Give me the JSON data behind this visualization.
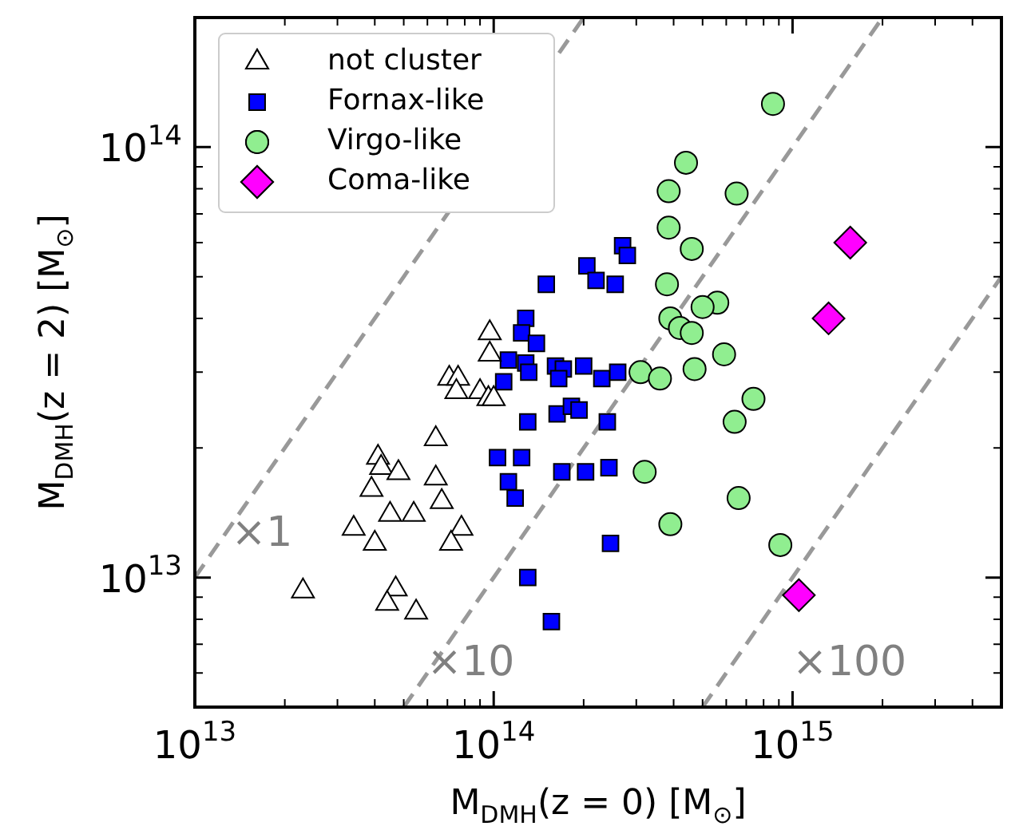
{
  "chart_data": {
    "type": "scatter",
    "xlabel": "M$_{DMH}$(z = 0) [M$_{⊙}$]",
    "ylabel": "M$_{DMH}$(z = 2) [M$_{⊙}$]",
    "log": "xy",
    "grid": false,
    "legend": "top left",
    "xlim": [
      10000000000000.0,
      5000000000000000.0
    ],
    "ylim": [
      5000000000000.0,
      200000000000000.0
    ],
    "xticks": [
      {
        "value": 10000000000000.0,
        "label": "10$^{13}$"
      },
      {
        "value": 20000000000000.0,
        "label": null
      },
      {
        "value": 30000000000000.0,
        "label": null
      },
      {
        "value": 40000000000000.0,
        "label": null
      },
      {
        "value": 50000000000000.0,
        "label": null
      },
      {
        "value": 60000000000000.0,
        "label": null
      },
      {
        "value": 70000000000000.0,
        "label": null
      },
      {
        "value": 80000000000000.0,
        "label": null
      },
      {
        "value": 90000000000000.0,
        "label": null
      },
      {
        "value": 100000000000000.0,
        "label": "10$^{14}$"
      },
      {
        "value": 200000000000000.0,
        "label": null
      },
      {
        "value": 300000000000000.0,
        "label": null
      },
      {
        "value": 400000000000000.0,
        "label": null
      },
      {
        "value": 500000000000000.0,
        "label": null
      },
      {
        "value": 600000000000000.0,
        "label": null
      },
      {
        "value": 700000000000000.0,
        "label": null
      },
      {
        "value": 800000000000000.0,
        "label": null
      },
      {
        "value": 900000000000000.0,
        "label": null
      },
      {
        "value": 1000000000000000.0,
        "label": "10$^{15}$"
      },
      {
        "value": 2000000000000000.0,
        "label": null
      },
      {
        "value": 3000000000000000.0,
        "label": null
      },
      {
        "value": 4000000000000000.0,
        "label": null
      }
    ],
    "yticks": [
      {
        "value": 6000000000000.0,
        "label": null
      },
      {
        "value": 7000000000000.0,
        "label": null
      },
      {
        "value": 8000000000000.0,
        "label": null
      },
      {
        "value": 9000000000000.0,
        "label": null
      },
      {
        "value": 10000000000000.0,
        "label": "10$^{13}$"
      },
      {
        "value": 20000000000000.0,
        "label": null
      },
      {
        "value": 30000000000000.0,
        "label": null
      },
      {
        "value": 40000000000000.0,
        "label": null
      },
      {
        "value": 50000000000000.0,
        "label": null
      },
      {
        "value": 60000000000000.0,
        "label": null
      },
      {
        "value": 70000000000000.0,
        "label": null
      },
      {
        "value": 80000000000000.0,
        "label": null
      },
      {
        "value": 90000000000000.0,
        "label": null
      },
      {
        "value": 100000000000000.0,
        "label": "10$^{14}$"
      }
    ],
    "annotations": [
      "×1",
      "×10",
      "×100"
    ],
    "series": [
      {
        "type": "line",
        "color": "#999999",
        "line_style": "dashed",
        "marker": "none",
        "x": [
          10000000000000.0,
          200000000000000.0
        ],
        "values": [
          10000000000000.0,
          200000000000000.0
        ]
      },
      {
        "type": "line",
        "color": "#999999",
        "line_style": "dashed",
        "marker": "none",
        "x": [
          50000000000000.0,
          2000000000000000.0
        ],
        "values": [
          5000000000000.0,
          200000000000000.0
        ]
      },
      {
        "type": "line",
        "color": "#999999",
        "line_style": "dashed",
        "marker": "none",
        "x": [
          500000000000000.0,
          5000000000000000.0
        ],
        "values": [
          5000000000000.0,
          50000000000000.0
        ]
      },
      {
        "name": "not cluster",
        "color": "#ffffff",
        "marker": "triangle",
        "x": [
          97000000000000.0,
          97000000000000.0,
          71000000000000.0,
          76000000000000.0,
          75000000000000.0,
          90000000000000.0,
          96000000000000.0,
          100000000000000.0,
          64000000000000.0,
          41000000000000.0,
          42000000000000.0,
          48000000000000.0,
          39000000000000.0,
          64000000000000.0,
          67000000000000.0,
          45000000000000.0,
          54000000000000.0,
          34000000000000.0,
          40000000000000.0,
          78000000000000.0,
          72000000000000.0,
          23000000000000.0,
          47000000000000.0,
          44000000000000.0,
          55000000000000.0
        ],
        "values": [
          37000000000000.0,
          33000000000000.0,
          29000000000000.0,
          29000000000000.0,
          27000000000000.0,
          27000000000000.0,
          26000000000000.0,
          26000000000000.0,
          21000000000000.0,
          19000000000000.0,
          18000000000000.0,
          17500000000000.0,
          16000000000000.0,
          17000000000000.0,
          15000000000000.0,
          14000000000000.0,
          14000000000000.0,
          13000000000000.0,
          12000000000000.0,
          13000000000000.0,
          12000000000000.0,
          9300000000000.0,
          9400000000000.0,
          8700000000000.0,
          8300000000000.0
        ]
      },
      {
        "name": "Fornax-like",
        "color": "#0000ff",
        "marker": "square",
        "x": [
          270000000000000.0,
          280000000000000.0,
          205000000000000.0,
          220000000000000.0,
          255000000000000.0,
          150000000000000.0,
          128000000000000.0,
          124000000000000.0,
          139000000000000.0,
          112000000000000.0,
          128000000000000.0,
          131000000000000.0,
          108000000000000.0,
          161000000000000.0,
          171000000000000.0,
          200000000000000.0,
          165000000000000.0,
          230000000000000.0,
          260000000000000.0,
          163000000000000.0,
          182000000000000.0,
          193000000000000.0,
          130000000000000.0,
          240000000000000.0,
          103000000000000.0,
          124000000000000.0,
          112000000000000.0,
          118000000000000.0,
          169000000000000.0,
          203000000000000.0,
          243000000000000.0,
          246000000000000.0,
          130000000000000.0,
          156000000000000.0
        ],
        "values": [
          59000000000000.0,
          56000000000000.0,
          53000000000000.0,
          49000000000000.0,
          48000000000000.0,
          48000000000000.0,
          40000000000000.0,
          37000000000000.0,
          35000000000000.0,
          32000000000000.0,
          31500000000000.0,
          30000000000000.0,
          28500000000000.0,
          31000000000000.0,
          30500000000000.0,
          31000000000000.0,
          29000000000000.0,
          29000000000000.0,
          30000000000000.0,
          24000000000000.0,
          25000000000000.0,
          24500000000000.0,
          23000000000000.0,
          23000000000000.0,
          19000000000000.0,
          19000000000000.0,
          16700000000000.0,
          15300000000000.0,
          17600000000000.0,
          17600000000000.0,
          18000000000000.0,
          12000000000000.0,
          10000000000000.0,
          7900000000000.0
        ]
      },
      {
        "name": "Virgo-like",
        "color": "#90ee90",
        "marker": "circle",
        "x": [
          860000000000000.0,
          440000000000000.0,
          385000000000000.0,
          650000000000000.0,
          385000000000000.0,
          460000000000000.0,
          380000000000000.0,
          560000000000000.0,
          500000000000000.0,
          390000000000000.0,
          420000000000000.0,
          460000000000000.0,
          590000000000000.0,
          470000000000000.0,
          310000000000000.0,
          360000000000000.0,
          740000000000000.0,
          640000000000000.0,
          320000000000000.0,
          660000000000000.0,
          390000000000000.0,
          910000000000000.0
        ],
        "values": [
          126000000000000.0,
          92000000000000.0,
          79000000000000.0,
          78000000000000.0,
          65000000000000.0,
          58000000000000.0,
          48000000000000.0,
          43500000000000.0,
          42500000000000.0,
          40000000000000.0,
          38000000000000.0,
          37000000000000.0,
          33000000000000.0,
          30500000000000.0,
          30000000000000.0,
          29000000000000.0,
          26000000000000.0,
          23000000000000.0,
          17600000000000.0,
          15300000000000.0,
          13300000000000.0,
          11900000000000.0
        ]
      },
      {
        "name": "Coma-like",
        "color": "#ff00ff",
        "marker": "diamond",
        "x": [
          1560000000000000.0,
          1320000000000000.0,
          1050000000000000.0
        ],
        "values": [
          60000000000000.0,
          40000000000000.0,
          9100000000000.0
        ]
      }
    ]
  }
}
